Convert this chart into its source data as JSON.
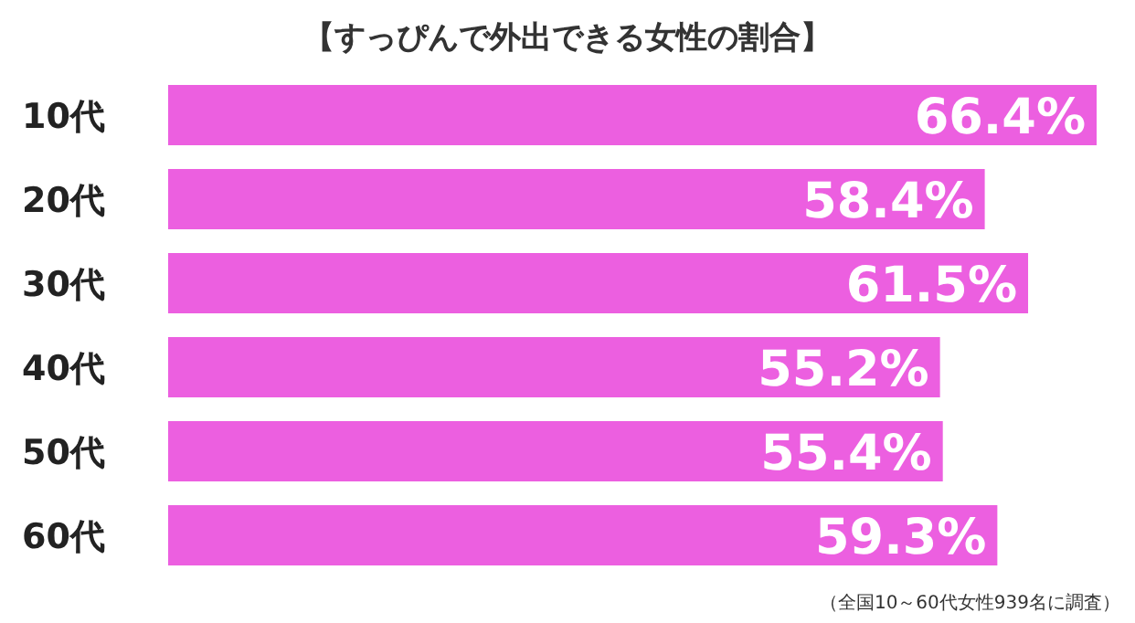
{
  "chart_data": {
    "type": "bar",
    "orientation": "horizontal",
    "title": "【すっぴんで外出できる女性の割合】",
    "categories": [
      "10代",
      "20代",
      "30代",
      "40代",
      "50代",
      "60代"
    ],
    "values": [
      66.4,
      58.4,
      61.5,
      55.2,
      55.4,
      59.3
    ],
    "value_labels": [
      "66.4%",
      "58.4%",
      "61.5%",
      "55.2%",
      "55.4%",
      "59.3%"
    ],
    "color": "#ec5fe0",
    "annotations": [
      "（全国10～60代女性939名に調査）"
    ]
  }
}
